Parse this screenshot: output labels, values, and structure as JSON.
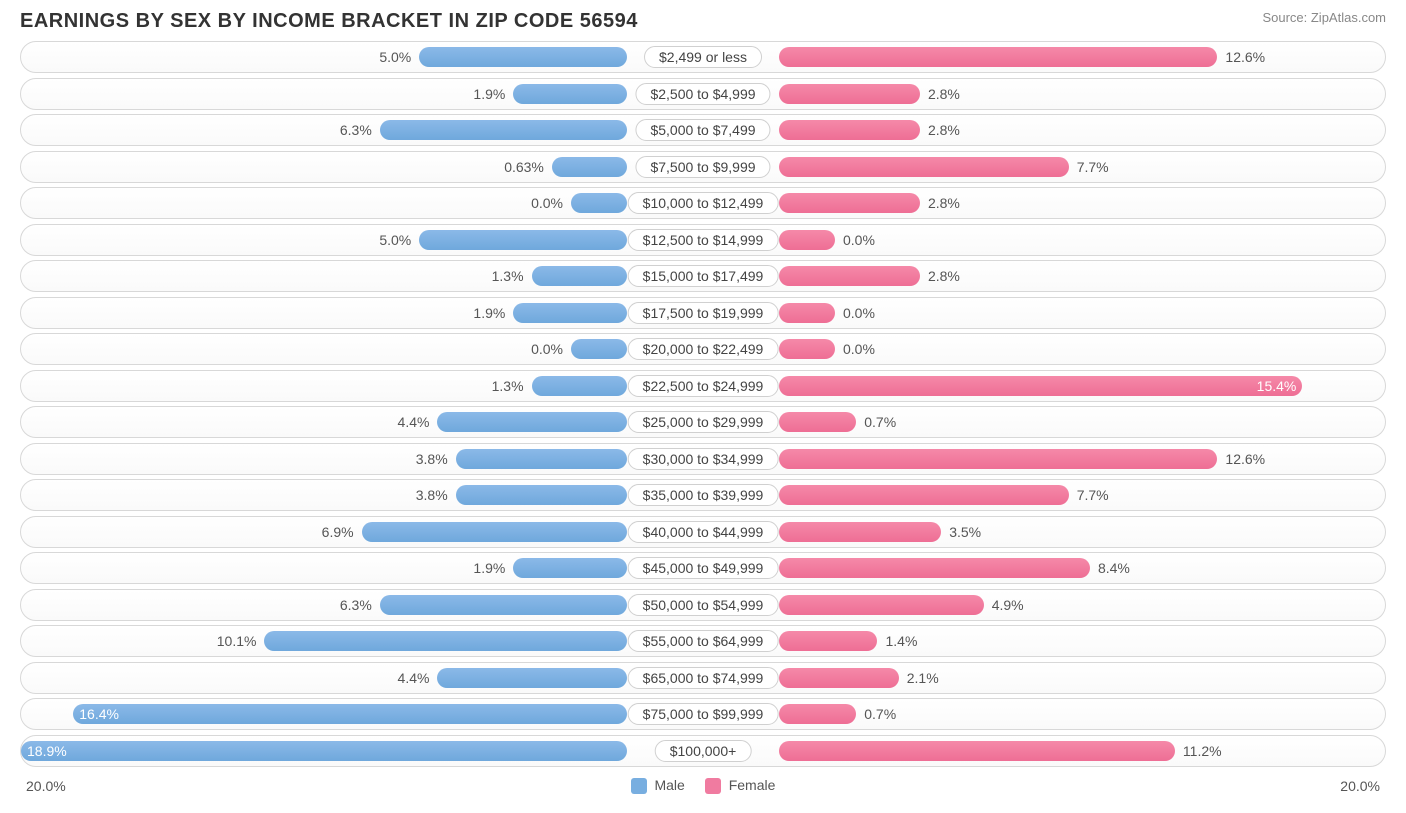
{
  "header": {
    "title": "EARNINGS BY SEX BY INCOME BRACKET IN ZIP CODE 56594",
    "source": "Source: ZipAtlas.com"
  },
  "chart": {
    "type": "diverging-bar",
    "axis_max": 20.0,
    "axis_left_label": "20.0%",
    "axis_right_label": "20.0%",
    "male_color": "#78aee0",
    "female_color": "#f07ba0",
    "track_border": "#d8d8d8",
    "background": "#ffffff",
    "label_bg": "#ffffff",
    "label_border": "#d0d0d0",
    "text_color": "#555555",
    "rows": [
      {
        "label": "$2,499 or less",
        "male": 5.0,
        "male_txt": "5.0%",
        "female": 12.6,
        "female_txt": "12.6%"
      },
      {
        "label": "$2,500 to $4,999",
        "male": 1.9,
        "male_txt": "1.9%",
        "female": 2.8,
        "female_txt": "2.8%"
      },
      {
        "label": "$5,000 to $7,499",
        "male": 6.3,
        "male_txt": "6.3%",
        "female": 2.8,
        "female_txt": "2.8%"
      },
      {
        "label": "$7,500 to $9,999",
        "male": 0.63,
        "male_txt": "0.63%",
        "female": 7.7,
        "female_txt": "7.7%"
      },
      {
        "label": "$10,000 to $12,499",
        "male": 0.0,
        "male_txt": "0.0%",
        "female": 2.8,
        "female_txt": "2.8%"
      },
      {
        "label": "$12,500 to $14,999",
        "male": 5.0,
        "male_txt": "5.0%",
        "female": 0.0,
        "female_txt": "0.0%"
      },
      {
        "label": "$15,000 to $17,499",
        "male": 1.3,
        "male_txt": "1.3%",
        "female": 2.8,
        "female_txt": "2.8%"
      },
      {
        "label": "$17,500 to $19,999",
        "male": 1.9,
        "male_txt": "1.9%",
        "female": 0.0,
        "female_txt": "0.0%"
      },
      {
        "label": "$20,000 to $22,499",
        "male": 0.0,
        "male_txt": "0.0%",
        "female": 0.0,
        "female_txt": "0.0%"
      },
      {
        "label": "$22,500 to $24,999",
        "male": 1.3,
        "male_txt": "1.3%",
        "female": 15.4,
        "female_txt": "15.4%"
      },
      {
        "label": "$25,000 to $29,999",
        "male": 4.4,
        "male_txt": "4.4%",
        "female": 0.7,
        "female_txt": "0.7%"
      },
      {
        "label": "$30,000 to $34,999",
        "male": 3.8,
        "male_txt": "3.8%",
        "female": 12.6,
        "female_txt": "12.6%"
      },
      {
        "label": "$35,000 to $39,999",
        "male": 3.8,
        "male_txt": "3.8%",
        "female": 7.7,
        "female_txt": "7.7%"
      },
      {
        "label": "$40,000 to $44,999",
        "male": 6.9,
        "male_txt": "6.9%",
        "female": 3.5,
        "female_txt": "3.5%"
      },
      {
        "label": "$45,000 to $49,999",
        "male": 1.9,
        "male_txt": "1.9%",
        "female": 8.4,
        "female_txt": "8.4%"
      },
      {
        "label": "$50,000 to $54,999",
        "male": 6.3,
        "male_txt": "6.3%",
        "female": 4.9,
        "female_txt": "4.9%"
      },
      {
        "label": "$55,000 to $64,999",
        "male": 10.1,
        "male_txt": "10.1%",
        "female": 1.4,
        "female_txt": "1.4%"
      },
      {
        "label": "$65,000 to $74,999",
        "male": 4.4,
        "male_txt": "4.4%",
        "female": 2.1,
        "female_txt": "2.1%"
      },
      {
        "label": "$75,000 to $99,999",
        "male": 16.4,
        "male_txt": "16.4%",
        "female": 0.7,
        "female_txt": "0.7%"
      },
      {
        "label": "$100,000+",
        "male": 18.9,
        "male_txt": "18.9%",
        "female": 11.2,
        "female_txt": "11.2%"
      }
    ]
  },
  "legend": {
    "male": "Male",
    "female": "Female"
  }
}
